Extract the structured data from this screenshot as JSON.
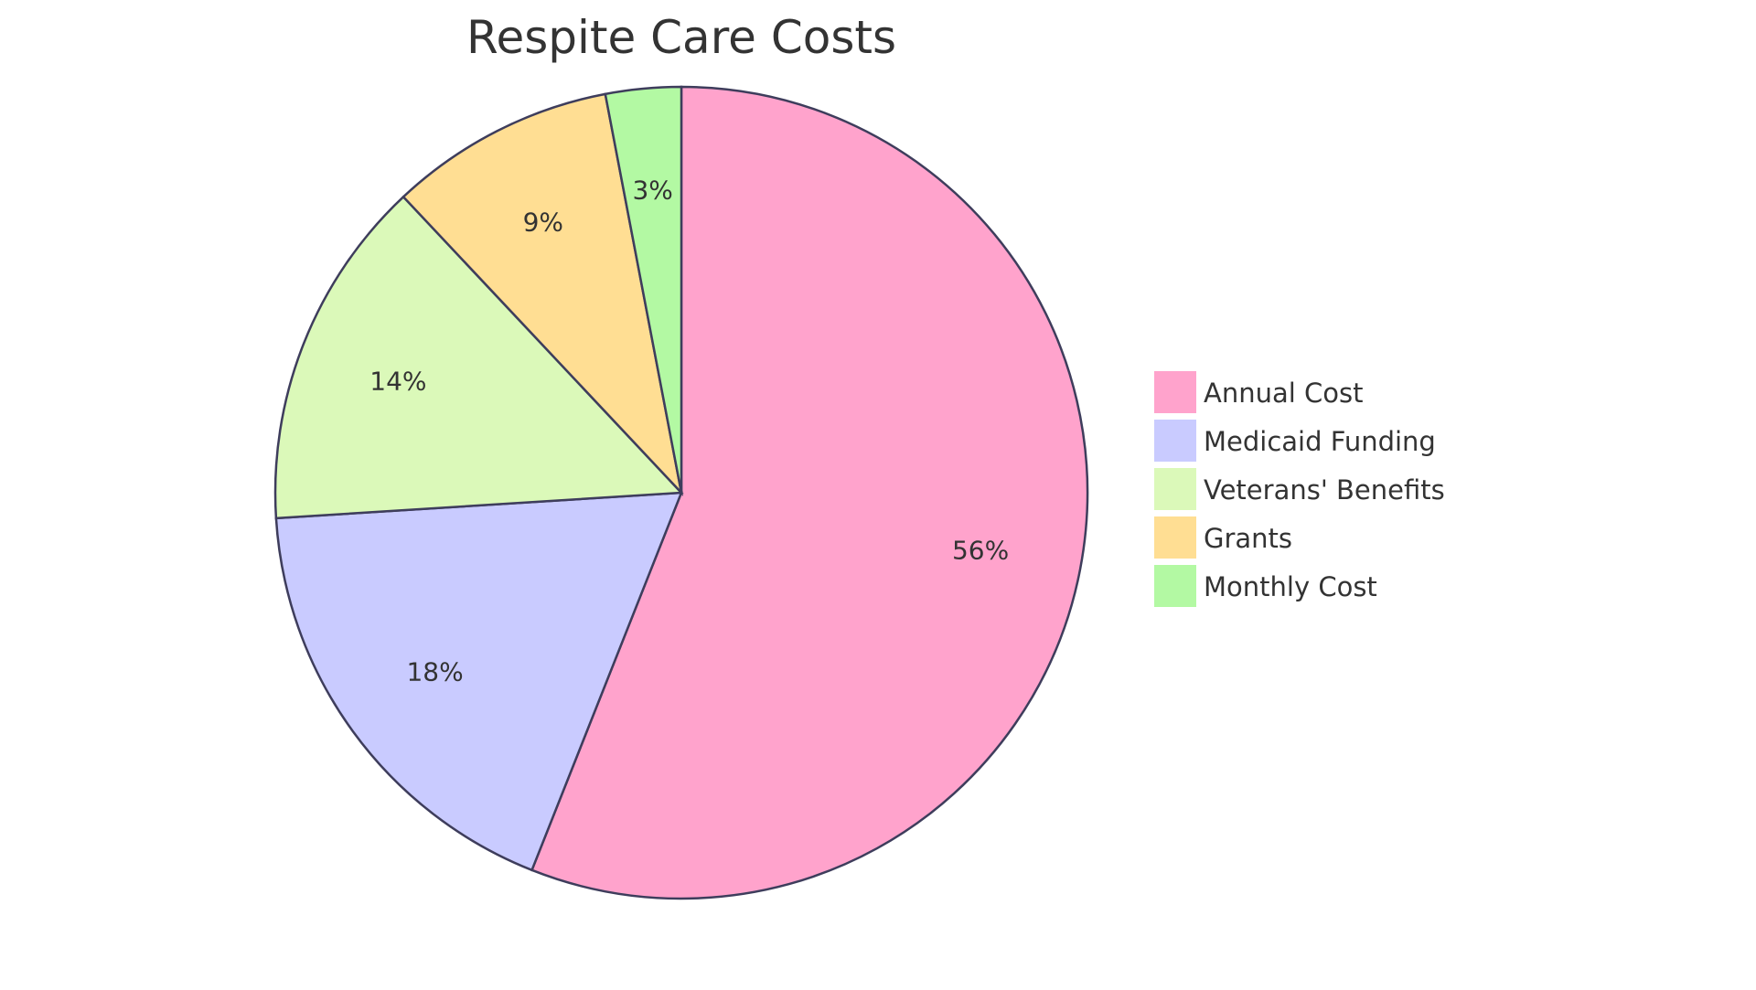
{
  "chart_data": {
    "type": "pie",
    "title": "Respite Care Costs",
    "categories": [
      "Annual Cost",
      "Medicaid Funding",
      "Veterans' Benefits",
      "Grants",
      "Monthly Cost"
    ],
    "values": [
      56,
      18,
      14,
      9,
      3
    ],
    "labels": [
      "56%",
      "18%",
      "14%",
      "9%",
      "3%"
    ],
    "colors": [
      "#FFA3CC",
      "#C9CBFF",
      "#DBF9B9",
      "#FFDE93",
      "#B3F9A3"
    ],
    "stroke_color": "#3E3D5C",
    "legend_position": "right",
    "start": "top",
    "direction": "clockwise"
  }
}
